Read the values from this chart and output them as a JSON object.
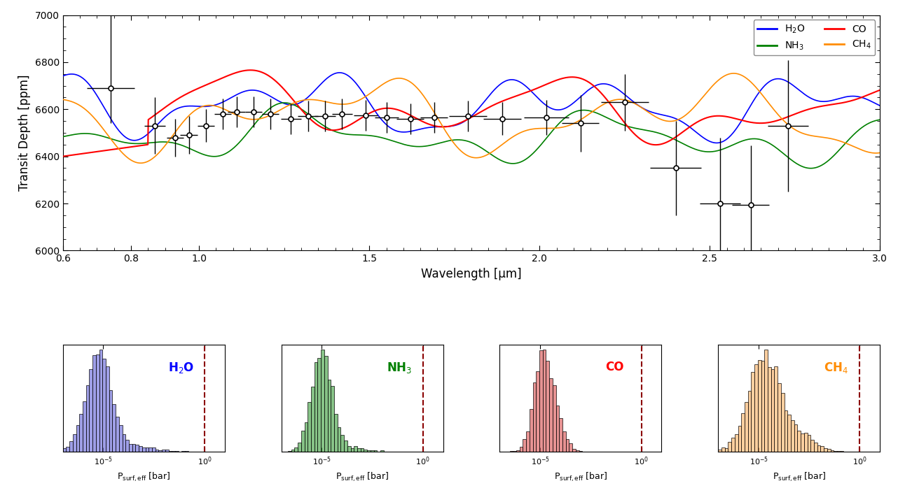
{
  "top_panel": {
    "xlim": [
      0.6,
      3.0
    ],
    "ylim": [
      6000,
      7000
    ],
    "xlabel": "Wavelength [μm]",
    "ylabel": "Transit Depth [ppm]",
    "yticks": [
      6000,
      6200,
      6400,
      6600,
      6800,
      7000
    ],
    "xticks": [
      0.6,
      0.8,
      1.0,
      1.5,
      2.0,
      2.5,
      3.0
    ]
  },
  "legend": {
    "H2O_color": "#0000ff",
    "NH3_color": "#008000",
    "CO_color": "#ff0000",
    "CH4_color": "#ff8c00"
  },
  "data_points": {
    "x": [
      0.74,
      0.87,
      0.93,
      0.97,
      1.02,
      1.07,
      1.11,
      1.16,
      1.21,
      1.27,
      1.32,
      1.37,
      1.42,
      1.49,
      1.55,
      1.62,
      1.69,
      1.79,
      1.89,
      2.02,
      2.12,
      2.25,
      2.4,
      2.53,
      2.62,
      2.73
    ],
    "y": [
      6690,
      6530,
      6480,
      6490,
      6530,
      6580,
      6590,
      6590,
      6580,
      6560,
      6570,
      6570,
      6580,
      6575,
      6565,
      6560,
      6565,
      6570,
      6560,
      6565,
      6540,
      6630,
      6350,
      6200,
      6195,
      6530
    ],
    "xerr": [
      0.07,
      0.03,
      0.025,
      0.025,
      0.025,
      0.025,
      0.025,
      0.025,
      0.025,
      0.03,
      0.03,
      0.03,
      0.03,
      0.035,
      0.035,
      0.04,
      0.04,
      0.055,
      0.055,
      0.065,
      0.055,
      0.07,
      0.075,
      0.06,
      0.055,
      0.06
    ],
    "yerr_lo": [
      150,
      120,
      80,
      80,
      70,
      65,
      65,
      65,
      65,
      65,
      65,
      65,
      65,
      65,
      65,
      65,
      65,
      65,
      70,
      75,
      120,
      120,
      200,
      280,
      250,
      280
    ],
    "yerr_hi": [
      330,
      120,
      80,
      80,
      70,
      65,
      65,
      65,
      65,
      65,
      65,
      65,
      65,
      65,
      65,
      65,
      65,
      65,
      70,
      75,
      120,
      120,
      200,
      280,
      250,
      280
    ]
  },
  "histograms": [
    {
      "label": "H₂O",
      "color_fill": "#7777dd",
      "color_fill_light": "#aaaaee",
      "color_edge": "black",
      "label_color": "#0000ff"
    },
    {
      "label": "NH₃",
      "color_fill": "#55aa55",
      "color_fill_light": "#88cc88",
      "color_edge": "black",
      "label_color": "#008000"
    },
    {
      "label": "CO",
      "color_fill": "#dd6666",
      "color_fill_light": "#ee9999",
      "color_edge": "black",
      "label_color": "#ff0000"
    },
    {
      "label": "CH₄",
      "color_fill": "#ffbb77",
      "color_fill_light": "#ffddaa",
      "color_edge": "black",
      "label_color": "#ff8c00"
    }
  ],
  "dashed_line_x": 1.0,
  "dashed_line_color": "#8b0000"
}
